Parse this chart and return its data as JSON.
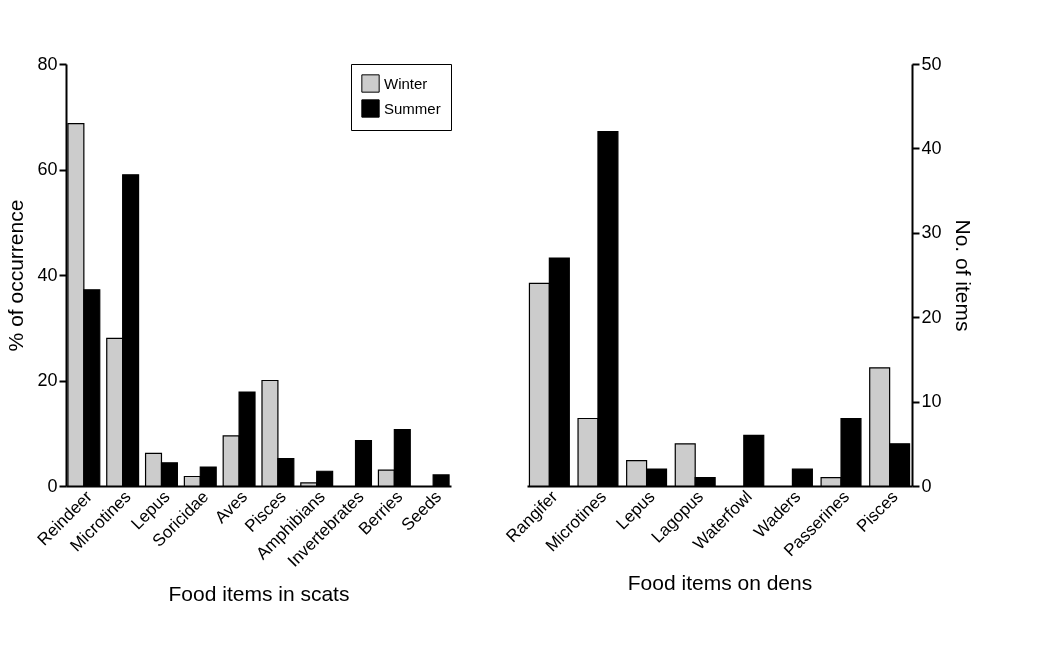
{
  "chart_data": [
    {
      "type": "bar",
      "xlabel": "Food items in scats",
      "ylabel": "% of occurrence",
      "categories": [
        "Reindeer",
        "Microtines",
        "Lepus",
        "Soricidae",
        "Aves",
        "Pisces",
        "Amphibians",
        "Invertebrates",
        "Berries",
        "Seeds"
      ],
      "series": [
        {
          "name": "Winter",
          "color": "#cccccc",
          "values": [
            68.7,
            28,
            6.2,
            1.8,
            9.5,
            20,
            0.6,
            0,
            3,
            0
          ]
        },
        {
          "name": "Summer",
          "color": "#000000",
          "values": [
            37.2,
            59,
            4.4,
            3.6,
            17.8,
            5.2,
            2.8,
            8.6,
            10.7,
            2.1
          ]
        }
      ],
      "ylim": [
        0,
        80
      ],
      "yticks": [
        0,
        20,
        40,
        60,
        80
      ],
      "legend": "top right"
    },
    {
      "type": "bar",
      "xlabel": "Food items on dens",
      "y2label": "No. of items",
      "categories": [
        "Rangifer",
        "Microtines",
        "Lepus",
        "Lagopus",
        "Waterfowl",
        "Waders",
        "Passerines",
        "Pisces"
      ],
      "series": [
        {
          "color": "#cccccc",
          "axis": "y2",
          "values": [
            24,
            8,
            3,
            5,
            0,
            0,
            1,
            14
          ]
        },
        {
          "color": "#000000",
          "axis": "y2",
          "values": [
            27,
            42,
            2,
            1,
            6,
            2,
            8,
            5
          ]
        }
      ],
      "y2lim": [
        0,
        50
      ],
      "y2ticks": [
        0,
        10,
        20,
        30,
        40,
        50
      ]
    }
  ]
}
